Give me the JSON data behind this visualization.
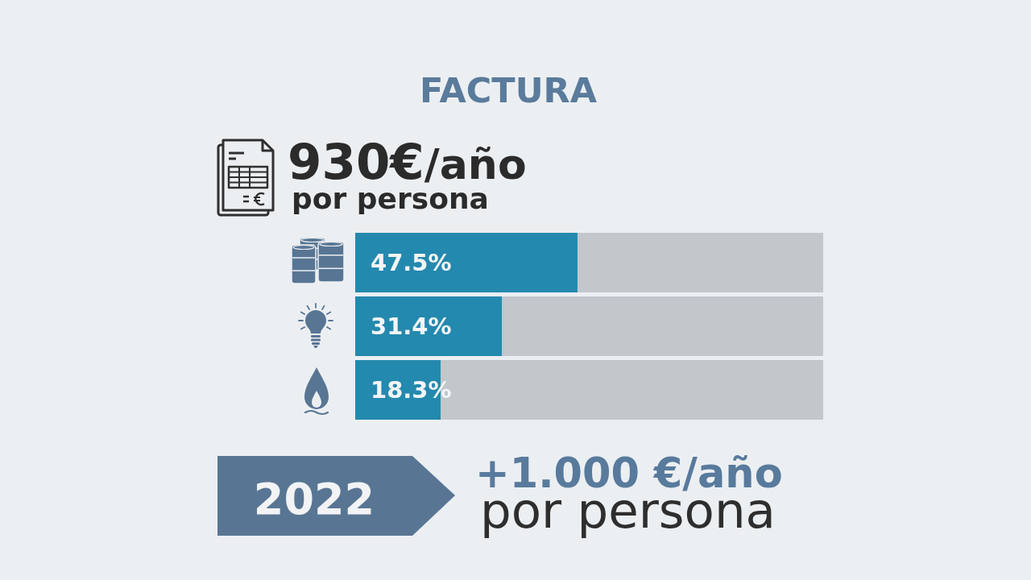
{
  "chart_data": {
    "type": "bar",
    "orientation": "horizontal",
    "stacked": true,
    "title": "FACTURA",
    "categories": [
      null,
      null,
      null
    ],
    "xlim": [
      0,
      100
    ],
    "series": [
      {
        "color": "#2489ae",
        "values": [
          47.5,
          31.4,
          18.3
        ],
        "value_labels": [
          "47.5%",
          "31.4%",
          "18.3%"
        ]
      },
      {
        "color": "#c2c7cc",
        "values": [
          52.5,
          68.6,
          81.7
        ]
      }
    ],
    "annotations": [
      "930€",
      "/año",
      "por persona",
      "2022",
      "+1.000 €/año",
      "por persona"
    ]
  }
}
